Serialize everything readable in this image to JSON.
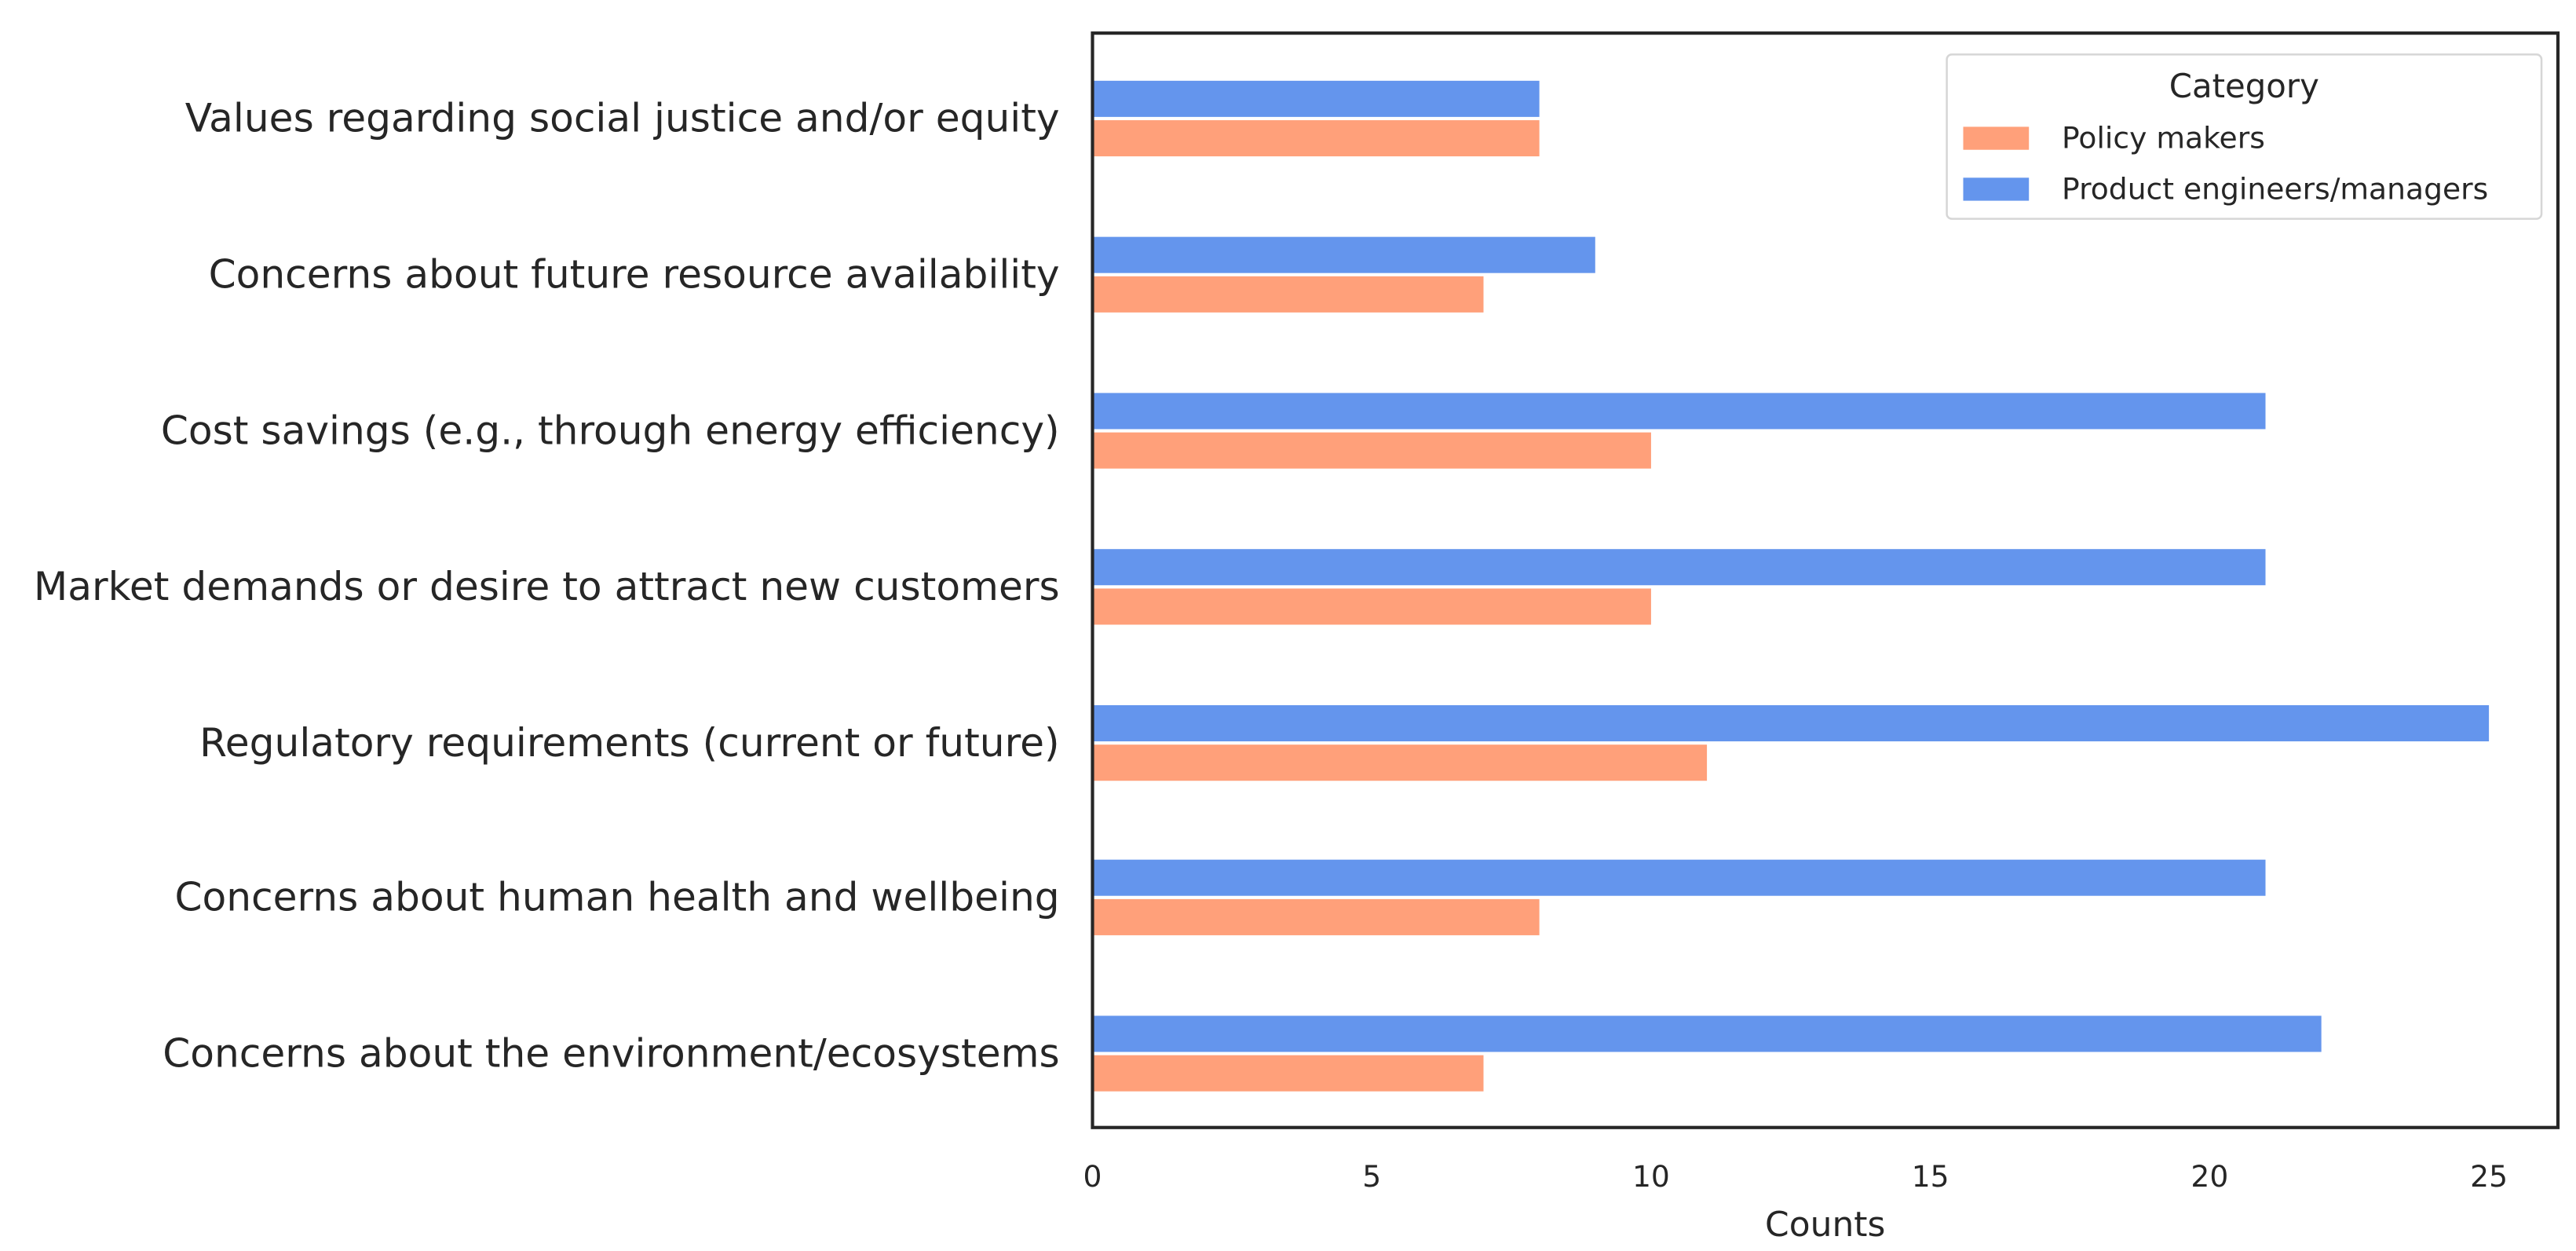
{
  "chart_data": {
    "type": "bar",
    "orientation": "horizontal",
    "categories": [
      "Values regarding social justice and/or equity",
      "Concerns about future resource availability",
      "Cost savings (e.g., through energy efficiency)",
      "Market demands or desire to attract new customers",
      "Regulatory requirements (current or future)",
      "Concerns about human health and wellbeing",
      "Concerns about the environment/ecosystems"
    ],
    "series": [
      {
        "name": "Policy makers",
        "color": "#FFA07A",
        "values": [
          8,
          7,
          10,
          10,
          11,
          8,
          7
        ]
      },
      {
        "name": "Product engineers/managers",
        "color": "#6495ED",
        "values": [
          8,
          9,
          21,
          21,
          25,
          21,
          22
        ]
      }
    ],
    "xlabel": "Counts",
    "ylabel": "",
    "xlim": [
      0,
      26.2
    ],
    "xticks": [
      "0",
      "5",
      "10",
      "15",
      "20",
      "25"
    ],
    "grid": false,
    "legend": {
      "title": "Category",
      "placement": "top-right"
    }
  }
}
